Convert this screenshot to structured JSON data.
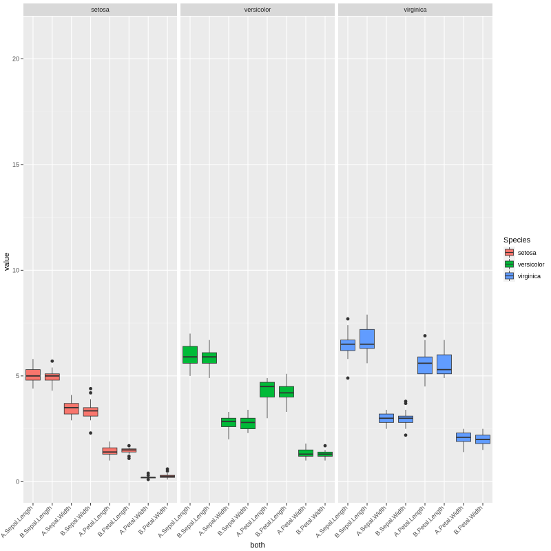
{
  "chart_data": {
    "type": "boxplot",
    "title": "",
    "xlabel": "both",
    "ylabel": "value",
    "ylim": [
      -1,
      22
    ],
    "yticks": [
      0,
      5,
      10,
      15,
      20
    ],
    "categories": [
      "A.Sepal.Length",
      "B.Sepal.Length",
      "A.Sepal.Width",
      "B.Sepal.Width",
      "A.Petal.Length",
      "B.Petal.Length",
      "A.Petal.Width",
      "B.Petal.Width"
    ],
    "legend": {
      "title": "Species",
      "placement": "right",
      "entries": [
        {
          "name": "setosa",
          "color": "#F8766D"
        },
        {
          "name": "versicolor",
          "color": "#00BA38"
        },
        {
          "name": "virginica",
          "color": "#619CFF"
        }
      ]
    },
    "facets": [
      {
        "name": "setosa",
        "color": "#F8766D",
        "boxes": [
          {
            "category": "A.Sepal.Length",
            "min": 4.4,
            "q1": 4.8,
            "median": 5.0,
            "q3": 5.3,
            "max": 5.8,
            "outliers": []
          },
          {
            "category": "B.Sepal.Length",
            "min": 4.3,
            "q1": 4.8,
            "median": 5.0,
            "q3": 5.1,
            "max": 5.4,
            "outliers": [
              5.7
            ]
          },
          {
            "category": "A.Sepal.Width",
            "min": 2.9,
            "q1": 3.2,
            "median": 3.5,
            "q3": 3.7,
            "max": 4.1,
            "outliers": []
          },
          {
            "category": "B.Sepal.Width",
            "min": 2.9,
            "q1": 3.1,
            "median": 3.35,
            "q3": 3.5,
            "max": 3.9,
            "outliers": [
              4.2,
              4.4,
              2.3
            ]
          },
          {
            "category": "A.Petal.Length",
            "min": 1.0,
            "q1": 1.3,
            "median": 1.4,
            "q3": 1.6,
            "max": 1.9,
            "outliers": []
          },
          {
            "category": "B.Petal.Length",
            "min": 1.3,
            "q1": 1.4,
            "median": 1.5,
            "q3": 1.55,
            "max": 1.6,
            "outliers": [
              1.7,
              1.2,
              1.1
            ]
          },
          {
            "category": "A.Petal.Width",
            "min": 0.2,
            "q1": 0.2,
            "median": 0.2,
            "q3": 0.2,
            "max": 0.2,
            "outliers": [
              0.1,
              0.4,
              0.3
            ]
          },
          {
            "category": "B.Petal.Width",
            "min": 0.1,
            "q1": 0.2,
            "median": 0.25,
            "q3": 0.3,
            "max": 0.4,
            "outliers": [
              0.5,
              0.6
            ]
          }
        ]
      },
      {
        "name": "versicolor",
        "color": "#00BA38",
        "boxes": [
          {
            "category": "A.Sepal.Length",
            "min": 5.0,
            "q1": 5.6,
            "median": 5.9,
            "q3": 6.4,
            "max": 7.0,
            "outliers": []
          },
          {
            "category": "B.Sepal.Length",
            "min": 4.9,
            "q1": 5.6,
            "median": 5.9,
            "q3": 6.1,
            "max": 6.7,
            "outliers": []
          },
          {
            "category": "A.Sepal.Width",
            "min": 2.0,
            "q1": 2.6,
            "median": 2.85,
            "q3": 3.0,
            "max": 3.3,
            "outliers": []
          },
          {
            "category": "B.Sepal.Width",
            "min": 2.3,
            "q1": 2.5,
            "median": 2.8,
            "q3": 3.0,
            "max": 3.4,
            "outliers": []
          },
          {
            "category": "A.Petal.Length",
            "min": 3.0,
            "q1": 4.0,
            "median": 4.5,
            "q3": 4.7,
            "max": 4.9,
            "outliers": []
          },
          {
            "category": "B.Petal.Length",
            "min": 3.3,
            "q1": 4.0,
            "median": 4.2,
            "q3": 4.5,
            "max": 5.1,
            "outliers": []
          },
          {
            "category": "A.Petal.Width",
            "min": 1.0,
            "q1": 1.2,
            "median": 1.3,
            "q3": 1.5,
            "max": 1.8,
            "outliers": []
          },
          {
            "category": "B.Petal.Width",
            "min": 1.0,
            "q1": 1.2,
            "median": 1.3,
            "q3": 1.4,
            "max": 1.5,
            "outliers": [
              1.7
            ]
          }
        ]
      },
      {
        "name": "virginica",
        "color": "#619CFF",
        "boxes": [
          {
            "category": "A.Sepal.Length",
            "min": 5.8,
            "q1": 6.2,
            "median": 6.5,
            "q3": 6.7,
            "max": 7.4,
            "outliers": [
              7.7,
              4.9
            ]
          },
          {
            "category": "B.Sepal.Length",
            "min": 5.6,
            "q1": 6.3,
            "median": 6.5,
            "q3": 7.2,
            "max": 7.9,
            "outliers": []
          },
          {
            "category": "A.Sepal.Width",
            "min": 2.5,
            "q1": 2.8,
            "median": 3.0,
            "q3": 3.2,
            "max": 3.4,
            "outliers": []
          },
          {
            "category": "B.Sepal.Width",
            "min": 2.5,
            "q1": 2.8,
            "median": 3.0,
            "q3": 3.1,
            "max": 3.4,
            "outliers": [
              3.7,
              3.8,
              2.2
            ]
          },
          {
            "category": "A.Petal.Length",
            "min": 4.5,
            "q1": 5.1,
            "median": 5.6,
            "q3": 5.9,
            "max": 6.7,
            "outliers": [
              6.9
            ]
          },
          {
            "category": "B.Petal.Length",
            "min": 4.9,
            "q1": 5.1,
            "median": 5.3,
            "q3": 6.0,
            "max": 6.7,
            "outliers": []
          },
          {
            "category": "A.Petal.Width",
            "min": 1.4,
            "q1": 1.9,
            "median": 2.1,
            "q3": 2.3,
            "max": 2.5,
            "outliers": []
          },
          {
            "category": "B.Petal.Width",
            "min": 1.5,
            "q1": 1.8,
            "median": 2.0,
            "q3": 2.2,
            "max": 2.5,
            "outliers": []
          }
        ]
      }
    ]
  }
}
